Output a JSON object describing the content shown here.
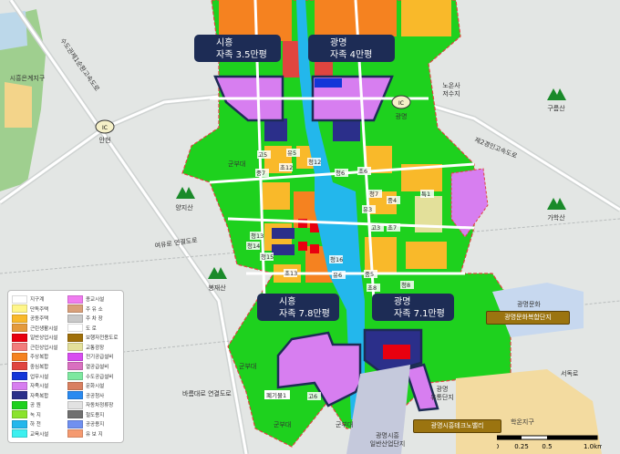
{
  "callouts": [
    {
      "region": "시흥",
      "detail": "자족 3.5만평"
    },
    {
      "region": "광명",
      "detail": "자족 4만평"
    },
    {
      "region": "시흥",
      "detail": "자족 7.8만평"
    },
    {
      "region": "광명",
      "detail": "자족 7.1만평"
    }
  ],
  "gold_labels": [
    "광명문화복합단지",
    "광명시흥테크노밸리"
  ],
  "places": {
    "eungye": "시흥은계지구",
    "ic_label": "IC",
    "anhyeon": "안현",
    "gwangmyeong_ic": "광명",
    "noonsa": "노온사",
    "noonsa2": "저수지",
    "gureumsan": "구름산",
    "gahaksan": "가학산",
    "yangjisan": "양지산",
    "bongjaesan": "봉재산",
    "army": "군부대",
    "hakon": "학온지구",
    "seodokro": "서독로",
    "yutong1": "광명",
    "yutong2": "유통단지",
    "industrial1": "광명시흥",
    "industrial2": "일반산업단지",
    "munhwa": "광명문화",
    "expressway1": "수도권제1순환고속도로",
    "expressway2": "제2경인고속도로",
    "road_conn1": "여유로 연결도로",
    "road_conn2": "바름대로 연결도로",
    "waste": "폐기물1"
  },
  "facilities": [
    "고5",
    "유5",
    "청12",
    "초12",
    "중7",
    "청6",
    "초6",
    "청7",
    "중4",
    "유3",
    "고3",
    "초7",
    "청13",
    "청14",
    "청15",
    "초13",
    "청16",
    "유6",
    "중5",
    "초8",
    "청8",
    "특1",
    "고6"
  ],
  "legend": [
    {
      "label": "지구계",
      "color": "#ffffff"
    },
    {
      "label": "단독주택",
      "color": "#fff68a"
    },
    {
      "label": "공동주택",
      "color": "#f9b92a"
    },
    {
      "label": "근린생활시설",
      "color": "#e49a3c"
    },
    {
      "label": "일반상업시설",
      "color": "#e8000f"
    },
    {
      "label": "근린상업시설",
      "color": "#f27c7c"
    },
    {
      "label": "주상복합",
      "color": "#f58220"
    },
    {
      "label": "중심복합",
      "color": "#e0453f"
    },
    {
      "label": "업무시설",
      "color": "#1336d8"
    },
    {
      "label": "자족시설",
      "color": "#d77ef0"
    },
    {
      "label": "자족복합",
      "color": "#2b2f8a"
    },
    {
      "label": "공    원",
      "color": "#1ed11e"
    },
    {
      "label": "녹    지",
      "color": "#8be32c"
    },
    {
      "label": "하    천",
      "color": "#23b7ec"
    },
    {
      "label": "교육시설",
      "color": "#3cf0f0"
    },
    {
      "label": "종교시설",
      "color": "#f07cf0"
    },
    {
      "label": "주 유 소",
      "color": "#d9a07a"
    },
    {
      "label": "주 차 장",
      "color": "#c8c8c8"
    },
    {
      "label": "도    로",
      "color": "#ffffff"
    },
    {
      "label": "보행자전용도로",
      "color": "#a0700a"
    },
    {
      "label": "교통광장",
      "color": "#e3e09a"
    },
    {
      "label": "전기공급설비",
      "color": "#d84df0"
    },
    {
      "label": "열공급설비",
      "color": "#d970c0"
    },
    {
      "label": "수도공급설비",
      "color": "#7ee8a0"
    },
    {
      "label": "문화시설",
      "color": "#d98060"
    },
    {
      "label": "공공청사",
      "color": "#2a8af0"
    },
    {
      "label": "자동차정류장",
      "color": "#e2e2e2"
    },
    {
      "label": "철도용지",
      "color": "#707070"
    },
    {
      "label": "공공용지",
      "color": "#7090f0"
    },
    {
      "label": "유 보 지",
      "color": "#f59a70"
    }
  ],
  "scale": {
    "ticks": [
      "0",
      "0.25",
      "0.5",
      "1.0km"
    ]
  },
  "colors": {
    "navy": "#1d2c55",
    "gold": "#9b7410",
    "park": "#1ed11e",
    "river": "#23b7ec",
    "apartment": "#f9b92a",
    "self_sufficient": "#d77ef0"
  }
}
